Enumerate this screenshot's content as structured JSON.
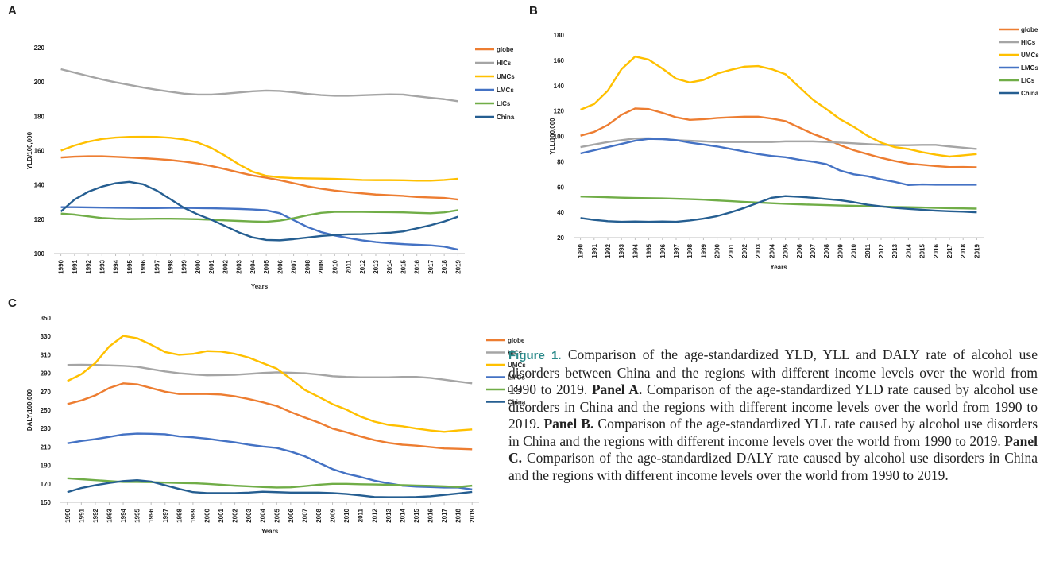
{
  "chart_data": [
    {
      "type": "line",
      "label": "A",
      "y_label": "YLD/100,000",
      "x_label": "Years",
      "categories": [
        "1990",
        "1991",
        "1992",
        "1993",
        "1994",
        "1995",
        "1996",
        "1997",
        "1998",
        "1999",
        "2000",
        "2001",
        "2002",
        "2003",
        "2004",
        "2005",
        "2006",
        "2007",
        "2008",
        "2009",
        "2010",
        "2011",
        "2012",
        "2013",
        "2014",
        "2015",
        "2016",
        "2017",
        "2018",
        "2019"
      ],
      "ylim": [
        100,
        220
      ],
      "yticks": [
        100,
        120,
        140,
        160,
        180,
        200,
        220
      ],
      "series": [
        {
          "name": "globe",
          "color": "#ed7d31",
          "values": [
            156,
            156.5,
            156.7,
            156.7,
            156.4,
            156,
            155.6,
            155.1,
            154.5,
            153.6,
            152.5,
            151,
            149.2,
            147.3,
            145.5,
            144.2,
            142.7,
            141,
            139.2,
            137.8,
            136.7,
            135.8,
            135.1,
            134.4,
            134,
            133.6,
            133,
            132.7,
            132.4,
            131.5
          ]
        },
        {
          "name": "HICs",
          "color": "#a5a5a5",
          "values": [
            207.5,
            205.5,
            203.5,
            201.5,
            199.8,
            198.3,
            196.8,
            195.5,
            194.3,
            193.2,
            192.7,
            192.7,
            193.2,
            193.9,
            194.6,
            195,
            194.8,
            194,
            193.1,
            192.4,
            192,
            192,
            192.3,
            192.6,
            192.8,
            192.7,
            191.7,
            190.8,
            190,
            188.8
          ]
        },
        {
          "name": "UMCs",
          "color": "#ffc000",
          "values": [
            160,
            163,
            165.2,
            166.8,
            167.6,
            168,
            168.1,
            168,
            167.5,
            166.5,
            164.7,
            161.5,
            157,
            152,
            147.7,
            145.3,
            144.4,
            144,
            143.8,
            143.7,
            143.5,
            143.2,
            142.9,
            142.8,
            142.8,
            142.7,
            142.5,
            142.5,
            142.9,
            143.6
          ]
        },
        {
          "name": "LMCs",
          "color": "#4472c4",
          "values": [
            127,
            127,
            126.9,
            126.8,
            126.7,
            126.6,
            126.5,
            126.5,
            126.6,
            126.6,
            126.5,
            126.4,
            126.2,
            126,
            125.7,
            125.2,
            123.5,
            119.5,
            115.5,
            112.5,
            110.5,
            109,
            107.7,
            106.7,
            106,
            105.5,
            105.1,
            104.8,
            104,
            102.3
          ]
        },
        {
          "name": "LICs",
          "color": "#70ad47",
          "values": [
            123.3,
            122.7,
            121.7,
            120.7,
            120.3,
            120.1,
            120.2,
            120.3,
            120.3,
            120.2,
            120,
            119.7,
            119.3,
            119,
            118.7,
            118.5,
            119.2,
            120.6,
            122.3,
            123.7,
            124.3,
            124.3,
            124.3,
            124.2,
            124.1,
            124,
            123.7,
            123.5,
            124,
            125.3
          ]
        },
        {
          "name": "China",
          "color": "#255e91",
          "values": [
            124.5,
            131.5,
            136,
            139,
            141,
            141.8,
            140.4,
            136.7,
            131.7,
            126.6,
            122.8,
            119.7,
            116,
            112.3,
            109.4,
            107.9,
            107.7,
            108.4,
            109.3,
            110.2,
            110.8,
            111.2,
            111.3,
            111.6,
            112.1,
            112.9,
            114.7,
            116.5,
            118.7,
            121.5
          ]
        }
      ]
    },
    {
      "type": "line",
      "label": "B",
      "y_label": "YLL/100,000",
      "x_label": "Years",
      "categories": [
        "1990",
        "1991",
        "1992",
        "1993",
        "1994",
        "1995",
        "1996",
        "1997",
        "1998",
        "1999",
        "2000",
        "2001",
        "2002",
        "2003",
        "2004",
        "2005",
        "2006",
        "2007",
        "2008",
        "2009",
        "2010",
        "2011",
        "2012",
        "2013",
        "2014",
        "2015",
        "2016",
        "2017",
        "2018",
        "2019"
      ],
      "ylim": [
        20,
        180
      ],
      "yticks": [
        20,
        40,
        60,
        80,
        100,
        120,
        140,
        160,
        180
      ],
      "series": [
        {
          "name": "globe",
          "color": "#ed7d31",
          "values": [
            100.5,
            103.5,
            109,
            117,
            122,
            121.5,
            118.5,
            115,
            113,
            113.5,
            114.5,
            115,
            115.5,
            115.5,
            114,
            112,
            107,
            102,
            98,
            93,
            89,
            86,
            83,
            80.5,
            78.5,
            77.5,
            76.5,
            75.7,
            75.8,
            75.6
          ]
        },
        {
          "name": "HICs",
          "color": "#a5a5a5",
          "values": [
            91.5,
            93.5,
            95.5,
            97,
            98.3,
            98.5,
            98,
            97,
            96.5,
            96,
            95.5,
            95.5,
            95.5,
            95.5,
            95.5,
            96,
            96,
            96,
            95.5,
            95,
            94.5,
            93.8,
            93.3,
            93,
            93,
            93.2,
            93.2,
            92,
            91,
            90
          ]
        },
        {
          "name": "UMCs",
          "color": "#ffc000",
          "values": [
            121,
            125.5,
            136,
            153,
            163,
            160.5,
            153.5,
            145.5,
            142.5,
            144.5,
            149.5,
            152.5,
            155,
            155.5,
            153,
            149,
            139,
            129,
            121.5,
            113.5,
            107.5,
            100.5,
            95,
            91.5,
            90,
            87.5,
            85.5,
            84,
            85,
            86
          ]
        },
        {
          "name": "LMCs",
          "color": "#4472c4",
          "values": [
            86.5,
            89,
            91.5,
            94,
            96.5,
            98,
            97.8,
            97,
            95,
            93.5,
            92,
            90,
            88,
            86,
            84.5,
            83.5,
            81.5,
            80,
            78,
            73,
            70,
            68.5,
            66,
            64,
            61.5,
            62,
            61.8,
            61.8,
            61.8,
            61.8
          ]
        },
        {
          "name": "LICs",
          "color": "#70ad47",
          "values": [
            52.5,
            52.2,
            51.9,
            51.6,
            51.3,
            51.2,
            51,
            50.7,
            50.4,
            50,
            49.4,
            48.8,
            48.2,
            47.7,
            47.2,
            46.7,
            46.3,
            46,
            45.7,
            45.4,
            45.1,
            44.8,
            44.5,
            44.2,
            44,
            43.8,
            43.5,
            43.3,
            43.1,
            42.9
          ]
        },
        {
          "name": "China",
          "color": "#255e91",
          "values": [
            35.5,
            34,
            33,
            32.5,
            32.7,
            32.5,
            32.7,
            32.5,
            33.5,
            35,
            37,
            40,
            43.5,
            47.5,
            51.5,
            52.8,
            52.3,
            51.5,
            50.5,
            49.5,
            48,
            46,
            44.7,
            43.5,
            42.7,
            42,
            41.3,
            40.8,
            40.5,
            40
          ]
        }
      ]
    },
    {
      "type": "line",
      "label": "C",
      "y_label": "DALY/100,000",
      "x_label": "Years",
      "categories": [
        "1990",
        "1991",
        "1992",
        "1993",
        "1994",
        "1995",
        "1996",
        "1997",
        "1998",
        "1999",
        "2000",
        "2001",
        "2002",
        "2003",
        "2004",
        "2005",
        "2006",
        "2007",
        "2008",
        "2009",
        "2010",
        "2011",
        "2012",
        "2013",
        "2014",
        "2015",
        "2016",
        "2017",
        "2018",
        "2019"
      ],
      "ylim": [
        150,
        350
      ],
      "yticks": [
        150,
        170,
        190,
        210,
        230,
        250,
        270,
        290,
        310,
        330,
        350
      ],
      "series": [
        {
          "name": "globe",
          "color": "#ed7d31",
          "values": [
            256.5,
            260.5,
            266,
            274,
            279,
            278,
            274,
            270,
            267.5,
            267.5,
            267.5,
            267,
            265,
            262,
            258.5,
            254.5,
            248,
            242,
            236.5,
            230,
            226,
            221.5,
            217.5,
            214.5,
            212.5,
            211.5,
            210,
            208.5,
            208,
            207.5
          ]
        },
        {
          "name": "HICs",
          "color": "#a5a5a5",
          "values": [
            299,
            299.2,
            299,
            298.5,
            298,
            297,
            294.5,
            292,
            290,
            288.8,
            287.8,
            288,
            288.3,
            289.3,
            290.3,
            291,
            290.6,
            290,
            288.6,
            286.8,
            286,
            285.6,
            285.6,
            285.6,
            286,
            286,
            285,
            283,
            281,
            279
          ]
        },
        {
          "name": "UMCs",
          "color": "#ffc000",
          "values": [
            281.5,
            289,
            301,
            319,
            330.5,
            328,
            321,
            313,
            310,
            311,
            314,
            313.5,
            311,
            307,
            301,
            295,
            284,
            272,
            264.5,
            256.5,
            250.5,
            243,
            237.5,
            234,
            232.5,
            230,
            228,
            226.5,
            228,
            229
          ]
        },
        {
          "name": "LMCs",
          "color": "#4472c4",
          "values": [
            214,
            216.5,
            218.5,
            221,
            223.5,
            224.5,
            224.3,
            223.8,
            221.5,
            220.5,
            219,
            217,
            215,
            212.5,
            210.5,
            209,
            205,
            200,
            193,
            186,
            181,
            177.5,
            173.5,
            170.5,
            168,
            167,
            166.5,
            166,
            166,
            164
          ]
        },
        {
          "name": "LICs",
          "color": "#70ad47",
          "values": [
            176,
            175,
            174,
            173,
            172,
            172,
            171.8,
            171.4,
            171,
            170.7,
            170,
            169,
            168,
            167.3,
            166.5,
            166,
            166.2,
            167.5,
            169,
            170,
            170,
            169.6,
            169.3,
            169,
            168.6,
            168.2,
            167.8,
            167.3,
            166.6,
            168
          ]
        },
        {
          "name": "China",
          "color": "#255e91",
          "values": [
            161,
            165.5,
            168.5,
            171,
            173,
            174,
            172.5,
            168.5,
            164.5,
            161,
            160,
            160,
            160,
            160.5,
            161.5,
            161,
            160.5,
            160.5,
            160.5,
            160,
            159,
            157.5,
            155.8,
            155.5,
            155.5,
            155.8,
            156.5,
            158,
            159.5,
            161.3
          ]
        }
      ]
    }
  ],
  "caption": {
    "label": "Figure 1.",
    "body": "Comparison of the age-standardized YLD, YLL and DALY rate of alcohol use disorders between China and the regions with different income levels over the world from 1990 to 2019.",
    "panels": [
      {
        "label": "Panel A.",
        "text": "Comparison of the age-standardized YLD rate caused by alcohol use disorders in China and the regions with different income levels over the world from 1990 to 2019."
      },
      {
        "label": "Panel B.",
        "text": "Comparison of the age-standardized YLL rate caused by alcohol use disorders in China and the regions with different income levels over the world from 1990 to 2019."
      },
      {
        "label": "Panel C.",
        "text": "Comparison of the age-standardized DALY rate caused by alcohol use disorders in China and the regions with different income levels over the world from 1990 to 2019."
      }
    ]
  }
}
